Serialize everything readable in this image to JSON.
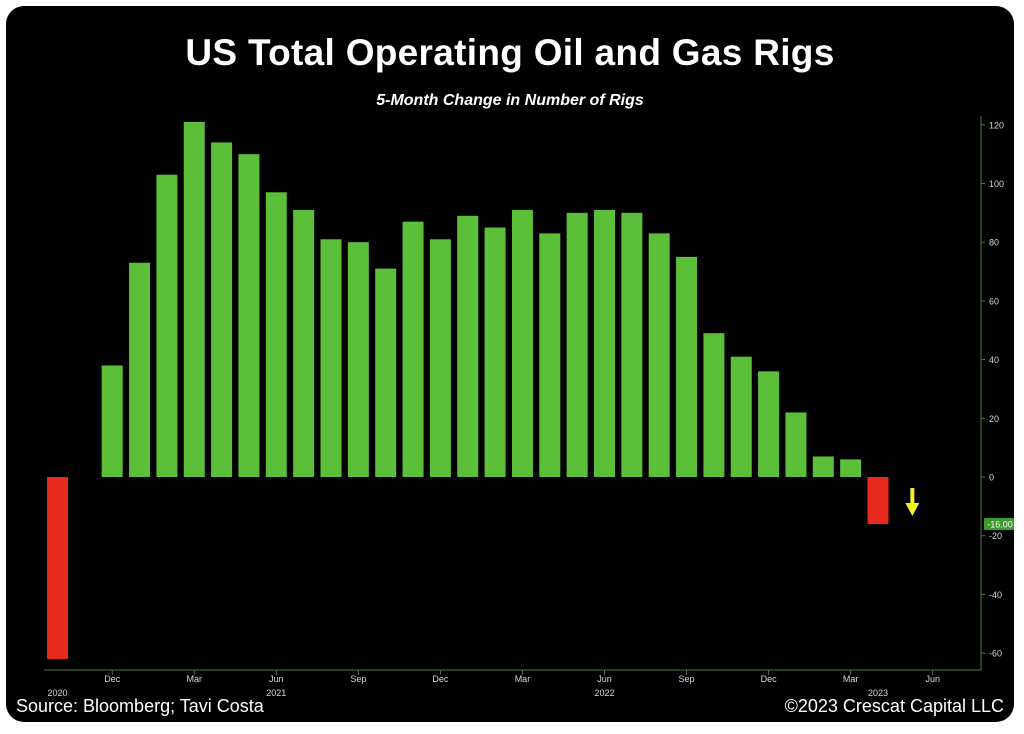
{
  "title": "US Total Operating Oil and Gas Rigs",
  "subtitle": "5-Month Change in Number of Rigs",
  "source": "Source: Bloomberg; Tavi Costa",
  "copyright": "©2023 Crescat Capital LLC",
  "colors": {
    "positive": "#5cbf3a",
    "negative": "#e8291d",
    "arrow": "#f4f023",
    "last_value_badge": "#3a9c2a",
    "axis": "#4f7a3e",
    "text": "#ffffff"
  },
  "icons": {
    "arrow": "down-arrow-icon"
  },
  "chart_data": {
    "type": "bar",
    "x": [
      "2020-09",
      "2020-11",
      "2020-12",
      "2021-01",
      "2021-02",
      "2021-03",
      "2021-04",
      "2021-05",
      "2021-06",
      "2021-07",
      "2021-08",
      "2021-09",
      "2021-10",
      "2021-11",
      "2021-12",
      "2022-01",
      "2022-02",
      "2022-03",
      "2022-04",
      "2022-05",
      "2022-06",
      "2022-07",
      "2022-08",
      "2022-09",
      "2022-10",
      "2022-11",
      "2022-12",
      "2023-01",
      "2023-02",
      "2023-03"
    ],
    "values": [
      -62,
      38,
      73,
      103,
      121,
      114,
      110,
      97,
      91,
      81,
      80,
      71,
      87,
      81,
      89,
      85,
      91,
      83,
      90,
      91,
      90,
      83,
      75,
      49,
      41,
      36,
      22,
      7,
      6,
      -16
    ],
    "ylim": [
      -65,
      123
    ],
    "yticks": [
      -60,
      -40,
      -20,
      0,
      20,
      40,
      60,
      80,
      100,
      120
    ],
    "ytick_labels": [
      "-60",
      "-40",
      "-20",
      "0",
      "20",
      "40",
      "60",
      "80",
      "100",
      "120"
    ],
    "y_axis_side": "right",
    "last_value_label": "-16.00",
    "xticks": [
      {
        "label": "Dec",
        "x": "2020-11"
      },
      {
        "label": "Mar",
        "x": "2021-02"
      },
      {
        "label": "Jun",
        "x": "2021-05"
      },
      {
        "label": "Sep",
        "x": "2021-08"
      },
      {
        "label": "Dec",
        "x": "2021-11"
      },
      {
        "label": "Mar",
        "x": "2022-02"
      },
      {
        "label": "Jun",
        "x": "2022-05"
      },
      {
        "label": "Sep",
        "x": "2022-08"
      },
      {
        "label": "Dec",
        "x": "2022-11"
      },
      {
        "label": "Mar",
        "x": "2023-02"
      },
      {
        "label": "Jun",
        "x": "2023-05"
      }
    ],
    "year_labels": [
      {
        "label": "2020",
        "x": "2020-09"
      },
      {
        "label": "2021",
        "x": "2021-05"
      },
      {
        "label": "2022",
        "x": "2022-05"
      },
      {
        "label": "2023",
        "x": "2023-03"
      }
    ],
    "annotation": {
      "type": "arrow",
      "direction": "down",
      "x": "2023-04"
    },
    "grid": false,
    "legend": "none"
  }
}
